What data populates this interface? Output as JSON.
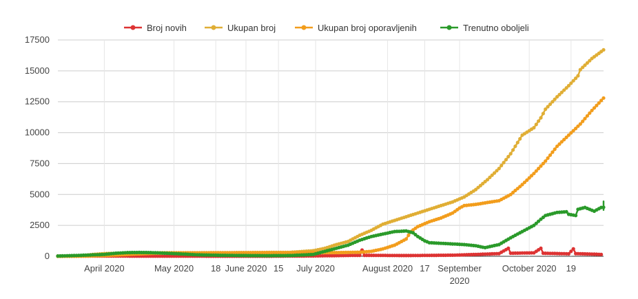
{
  "chart_data": {
    "type": "line",
    "title": "",
    "xlabel": "",
    "ylabel": "",
    "ylim": [
      0,
      17500
    ],
    "y_ticks": [
      "0",
      "2500",
      "5000",
      "7500",
      "10000",
      "12500",
      "15000",
      "17500"
    ],
    "y_tick_values": [
      0,
      2500,
      5000,
      7500,
      10000,
      12500,
      15000,
      17500
    ],
    "x_range_days": [
      -20,
      215
    ],
    "x_ticks": [
      {
        "day": 0,
        "lines": [
          "April 2020"
        ]
      },
      {
        "day": 30,
        "lines": [
          "May 2020"
        ]
      },
      {
        "day": 48,
        "lines": [
          "18"
        ]
      },
      {
        "day": 61,
        "lines": [
          "June 2020"
        ]
      },
      {
        "day": 75,
        "lines": [
          "15"
        ]
      },
      {
        "day": 91,
        "lines": [
          "July 2020"
        ]
      },
      {
        "day": 122,
        "lines": [
          "August 2020"
        ]
      },
      {
        "day": 138,
        "lines": [
          "17"
        ]
      },
      {
        "day": 153,
        "lines": [
          "September",
          "2020"
        ]
      },
      {
        "day": 183,
        "lines": [
          "October 2020"
        ]
      },
      {
        "day": 201,
        "lines": [
          "19"
        ]
      }
    ],
    "grid": {
      "horizontal": true,
      "vertical": true
    },
    "legend_position": "top-center",
    "series": [
      {
        "name": "Broj novih",
        "color": "#dd3333",
        "points": [
          [
            -20,
            20
          ],
          [
            30,
            10
          ],
          [
            70,
            5
          ],
          [
            90,
            30
          ],
          [
            110,
            80
          ],
          [
            111,
            500
          ],
          [
            112,
            80
          ],
          [
            130,
            60
          ],
          [
            150,
            90
          ],
          [
            160,
            150
          ],
          [
            170,
            220
          ],
          [
            174,
            650
          ],
          [
            175,
            250
          ],
          [
            185,
            280
          ],
          [
            188,
            650
          ],
          [
            189,
            250
          ],
          [
            200,
            200
          ],
          [
            202,
            600
          ],
          [
            203,
            220
          ],
          [
            210,
            180
          ],
          [
            214,
            150
          ]
        ]
      },
      {
        "name": "Ukupan broj",
        "color": "#e0ae35",
        "points": [
          [
            -20,
            0
          ],
          [
            -10,
            40
          ],
          [
            -5,
            150
          ],
          [
            0,
            220
          ],
          [
            10,
            260
          ],
          [
            20,
            280
          ],
          [
            40,
            290
          ],
          [
            60,
            300
          ],
          [
            80,
            320
          ],
          [
            90,
            450
          ],
          [
            95,
            650
          ],
          [
            100,
            950
          ],
          [
            105,
            1200
          ],
          [
            110,
            1700
          ],
          [
            115,
            2100
          ],
          [
            120,
            2600
          ],
          [
            125,
            2900
          ],
          [
            130,
            3200
          ],
          [
            135,
            3500
          ],
          [
            140,
            3800
          ],
          [
            145,
            4100
          ],
          [
            150,
            4400
          ],
          [
            155,
            4800
          ],
          [
            160,
            5400
          ],
          [
            165,
            6200
          ],
          [
            170,
            7100
          ],
          [
            175,
            8300
          ],
          [
            177,
            8900
          ],
          [
            180,
            9800
          ],
          [
            185,
            10400
          ],
          [
            188,
            11200
          ],
          [
            190,
            11900
          ],
          [
            195,
            12900
          ],
          [
            200,
            13800
          ],
          [
            204,
            14600
          ],
          [
            205,
            15100
          ],
          [
            210,
            16000
          ],
          [
            215,
            16700
          ]
        ]
      },
      {
        "name": "Ukupan broj oporavljenih",
        "color": "#f29d1c",
        "points": [
          [
            -20,
            0
          ],
          [
            -10,
            10
          ],
          [
            0,
            60
          ],
          [
            10,
            150
          ],
          [
            20,
            230
          ],
          [
            30,
            270
          ],
          [
            50,
            280
          ],
          [
            70,
            285
          ],
          [
            90,
            290
          ],
          [
            100,
            300
          ],
          [
            110,
            330
          ],
          [
            115,
            400
          ],
          [
            120,
            600
          ],
          [
            125,
            900
          ],
          [
            130,
            1400
          ],
          [
            132,
            2000
          ],
          [
            135,
            2400
          ],
          [
            140,
            2800
          ],
          [
            145,
            3100
          ],
          [
            150,
            3500
          ],
          [
            153,
            3900
          ],
          [
            155,
            4100
          ],
          [
            160,
            4200
          ],
          [
            170,
            4500
          ],
          [
            175,
            5000
          ],
          [
            180,
            5800
          ],
          [
            185,
            6700
          ],
          [
            190,
            7700
          ],
          [
            195,
            8900
          ],
          [
            200,
            9800
          ],
          [
            205,
            10700
          ],
          [
            210,
            11800
          ],
          [
            215,
            12800
          ]
        ]
      },
      {
        "name": "Trenutno oboljeli",
        "color": "#2a9a2a",
        "points": [
          [
            -20,
            20
          ],
          [
            -10,
            80
          ],
          [
            0,
            150
          ],
          [
            5,
            250
          ],
          [
            10,
            300
          ],
          [
            15,
            310
          ],
          [
            20,
            300
          ],
          [
            25,
            260
          ],
          [
            30,
            220
          ],
          [
            35,
            170
          ],
          [
            40,
            120
          ],
          [
            50,
            80
          ],
          [
            60,
            60
          ],
          [
            70,
            50
          ],
          [
            80,
            60
          ],
          [
            90,
            150
          ],
          [
            95,
            400
          ],
          [
            100,
            650
          ],
          [
            105,
            900
          ],
          [
            110,
            1300
          ],
          [
            115,
            1600
          ],
          [
            120,
            1800
          ],
          [
            125,
            2000
          ],
          [
            130,
            2050
          ],
          [
            133,
            1900
          ],
          [
            135,
            1600
          ],
          [
            138,
            1250
          ],
          [
            140,
            1100
          ],
          [
            145,
            1050
          ],
          [
            150,
            1000
          ],
          [
            155,
            950
          ],
          [
            160,
            850
          ],
          [
            164,
            700
          ],
          [
            170,
            950
          ],
          [
            175,
            1500
          ],
          [
            180,
            2000
          ],
          [
            185,
            2500
          ],
          [
            188,
            3000
          ],
          [
            190,
            3300
          ],
          [
            195,
            3550
          ],
          [
            199,
            3600
          ],
          [
            200,
            3400
          ],
          [
            203,
            3300
          ],
          [
            204,
            3800
          ],
          [
            207,
            3950
          ],
          [
            211,
            3650
          ],
          [
            214,
            3950
          ],
          [
            218,
            4000
          ],
          [
            221,
            4100
          ],
          [
            222,
            4450
          ],
          [
            225,
            4350
          ],
          [
            228,
            4050
          ],
          [
            230,
            3800
          ],
          [
            233,
            3750
          ]
        ]
      }
    ]
  }
}
